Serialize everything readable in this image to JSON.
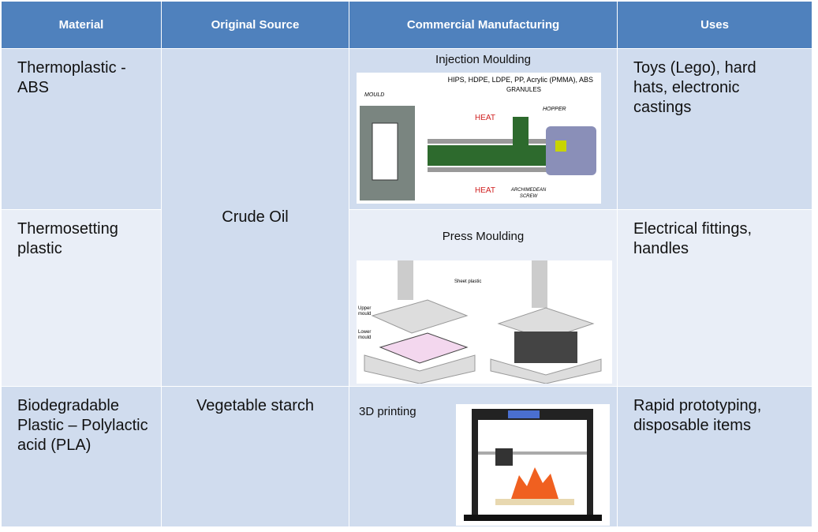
{
  "table": {
    "header": [
      "Material",
      "Original Source",
      "Commercial Manufacturing",
      "Uses"
    ],
    "rows": [
      {
        "material": "Thermoplastic - ABS",
        "source": "Crude Oil",
        "manufacturing": "Injection Moulding",
        "uses": "Toys (Lego), hard hats, electronic castings"
      },
      {
        "material": "Thermosetting plastic",
        "manufacturing": "Press Moulding",
        "uses": "Electrical fittings, handles"
      },
      {
        "material": "Biodegradable Plastic – Polylactic acid (PLA)",
        "source": "Vegetable starch",
        "manufacturing": "3D printing",
        "uses": "Rapid prototyping, disposable items"
      }
    ]
  },
  "injection_diagram": {
    "labels": [
      "HIPS, HDPE, LDPE, PP, Acrylic (PMMA), ABS",
      "GRANULES",
      "MOULD",
      "HOPPER",
      "HEAT",
      "HEAT",
      "ARCHIMEDEAN",
      "SCREW"
    ]
  },
  "press_diagram": {
    "labels": [
      "Sheet plastic",
      "Upper",
      "mould",
      "Lower",
      "mould"
    ]
  }
}
